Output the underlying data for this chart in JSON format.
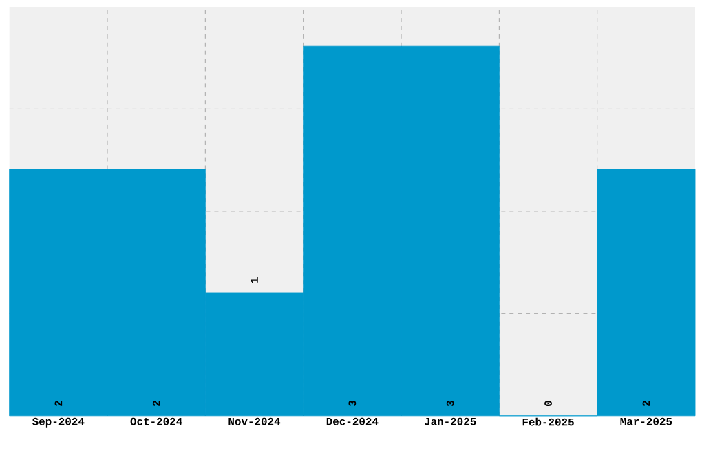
{
  "chart_data": {
    "type": "bar",
    "categories": [
      "Sep-2024",
      "Oct-2024",
      "Nov-2024",
      "Dec-2024",
      "Jan-2025",
      "Feb-2025",
      "Mar-2025"
    ],
    "values": [
      2,
      2,
      1,
      3,
      3,
      0,
      2
    ],
    "color": "#0099cc",
    "data_labels": true,
    "grid": true,
    "ylim": [
      0,
      3.32
    ],
    "yticks": [
      {
        "value": 0.83,
        "label": null
      },
      {
        "value": 1.66,
        "label": null
      },
      {
        "value": 2.49,
        "label": null
      }
    ],
    "tick_labels": "x"
  }
}
